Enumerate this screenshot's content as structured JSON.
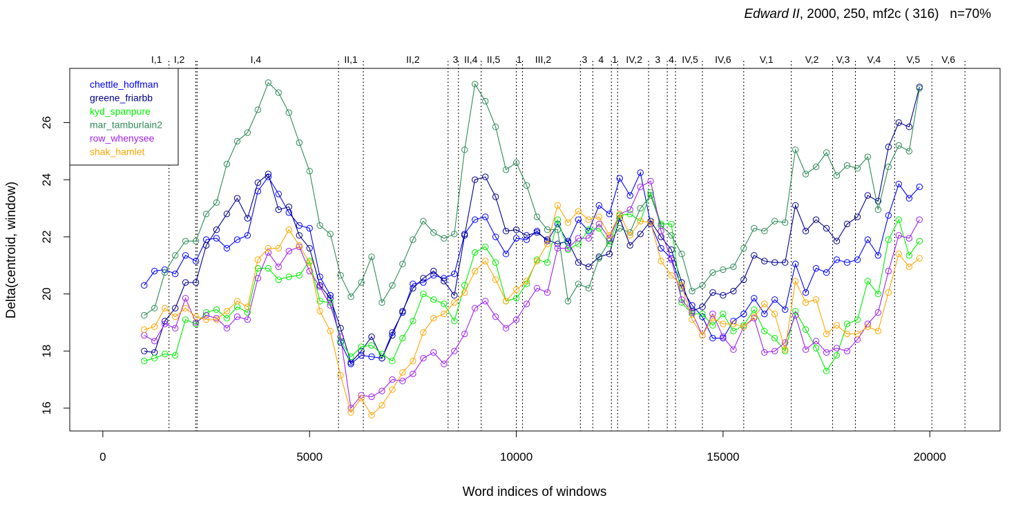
{
  "chart_data": {
    "type": "line",
    "title": {
      "italic": "Edward II",
      "rest": ", 2000, 250, mf2c ( 316)   n=70%"
    },
    "xlabel": "Word indices of windows",
    "ylabel": "Delta(centroid, window)",
    "xlim": [
      -800,
      21700
    ],
    "ylim": [
      15.2,
      27.9
    ],
    "x_ticks": [
      0,
      5000,
      10000,
      15000,
      20000
    ],
    "y_ticks": [
      16,
      18,
      20,
      22,
      24,
      26
    ],
    "legend_position": "top-left",
    "x": [
      1000,
      1250,
      1500,
      1750,
      2000,
      2250,
      2500,
      2750,
      3000,
      3250,
      3500,
      3750,
      4000,
      4250,
      4500,
      4750,
      5000,
      5250,
      5500,
      5750,
      6000,
      6250,
      6500,
      6750,
      7000,
      7250,
      7500,
      7750,
      8000,
      8250,
      8500,
      8750,
      9000,
      9250,
      9500,
      9750,
      10000,
      10250,
      10500,
      10750,
      11000,
      11250,
      11500,
      11750,
      12000,
      12250,
      12500,
      12750,
      13000,
      13250,
      13500,
      13750,
      14000,
      14250,
      14500,
      14750,
      15000,
      15250,
      15500,
      15750,
      16000,
      16250,
      16500,
      16750,
      17000,
      17250,
      17500,
      17750,
      18000,
      18250,
      18500,
      18750,
      19000,
      19250,
      19500,
      19750
    ],
    "series": [
      {
        "name": "chettle_hoffman",
        "color": "#0000ff",
        "values": [
          20.3,
          20.8,
          20.85,
          20.7,
          21.35,
          21.15,
          21.9,
          21.95,
          21.6,
          21.9,
          22.05,
          23.6,
          24.1,
          23.5,
          22.85,
          22.4,
          22.3,
          20.6,
          19.95,
          18.3,
          17.55,
          17.85,
          17.8,
          17.75,
          18.65,
          19.35,
          20.35,
          20.4,
          20.65,
          20.55,
          20.7,
          22.1,
          22.6,
          22.7,
          22.0,
          21.4,
          21.95,
          21.9,
          22.2,
          21.85,
          22.45,
          21.8,
          22.6,
          22.2,
          23.1,
          22.8,
          24.05,
          23.45,
          24.25,
          22.45,
          21.6,
          21.25,
          20.2,
          19.6,
          19.2,
          18.45,
          18.45,
          19.05,
          19.3,
          19.85,
          19.3,
          19.8,
          19.45,
          21.05,
          20.05,
          20.9,
          20.75,
          21.2,
          21.1,
          21.2,
          21.9,
          21.35,
          22.75,
          23.85,
          23.35,
          23.75
        ]
      },
      {
        "name": "greene_friarbb",
        "color": "#00008b",
        "values": [
          18.0,
          17.95,
          19.05,
          19.5,
          20.4,
          20.4,
          21.7,
          22.25,
          22.8,
          23.35,
          22.65,
          23.9,
          24.2,
          22.95,
          23.05,
          22.05,
          21.6,
          20.3,
          19.85,
          18.8,
          17.6,
          18.0,
          18.5,
          17.75,
          18.55,
          19.4,
          20.2,
          20.55,
          20.8,
          20.45,
          19.95,
          22.05,
          24.0,
          24.1,
          23.4,
          22.2,
          22.25,
          22.05,
          22.15,
          21.9,
          21.75,
          21.85,
          21.1,
          20.95,
          21.3,
          21.4,
          22.65,
          21.7,
          22.1,
          22.55,
          22.0,
          21.55,
          20.4,
          19.4,
          19.55,
          20.05,
          19.95,
          20.1,
          20.5,
          21.35,
          21.15,
          21.1,
          21.1,
          23.1,
          22.2,
          22.6,
          22.3,
          21.85,
          22.45,
          22.7,
          23.45,
          23.25,
          25.15,
          26.0,
          25.85,
          27.25
        ]
      },
      {
        "name": "kyd_spanpure",
        "color": "#00ee00",
        "values": [
          17.65,
          17.75,
          17.9,
          17.85,
          19.1,
          18.95,
          19.35,
          19.45,
          19.15,
          19.55,
          19.35,
          20.9,
          20.9,
          20.5,
          20.6,
          20.65,
          21.15,
          19.75,
          19.7,
          18.35,
          17.8,
          18.15,
          18.2,
          17.9,
          17.65,
          18.45,
          19.05,
          20.0,
          19.8,
          19.65,
          19.05,
          20.3,
          21.45,
          21.65,
          21.1,
          19.75,
          19.85,
          20.35,
          21.2,
          21.1,
          22.6,
          21.55,
          21.75,
          22.25,
          22.3,
          21.75,
          22.75,
          22.8,
          22.55,
          23.55,
          22.45,
          22.45,
          19.7,
          19.3,
          19.3,
          18.9,
          19.3,
          18.7,
          18.9,
          19.45,
          18.7,
          18.45,
          18.0,
          19.4,
          18.75,
          18.1,
          17.3,
          17.85,
          18.95,
          19.1,
          20.45,
          20.0,
          21.9,
          22.6,
          21.35,
          21.85
        ]
      },
      {
        "name": "mar_tamburlain2",
        "color": "#2e8b57",
        "values": [
          19.25,
          19.5,
          20.75,
          21.35,
          21.85,
          21.85,
          22.8,
          23.2,
          24.55,
          25.35,
          25.65,
          26.45,
          27.4,
          27.05,
          26.35,
          25.3,
          24.3,
          22.4,
          22.1,
          20.65,
          19.9,
          20.4,
          21.3,
          19.7,
          20.3,
          21.05,
          21.9,
          22.55,
          22.15,
          21.95,
          22.1,
          25.05,
          27.35,
          26.75,
          25.85,
          24.35,
          24.6,
          23.8,
          22.7,
          22.25,
          22.25,
          19.75,
          20.35,
          20.2,
          21.25,
          21.85,
          22.3,
          22.15,
          23.0,
          23.45,
          22.4,
          22.05,
          21.4,
          20.1,
          20.3,
          20.75,
          20.85,
          20.95,
          21.6,
          22.3,
          22.2,
          22.55,
          22.5,
          25.05,
          24.2,
          24.45,
          24.95,
          24.15,
          24.5,
          24.4,
          24.8,
          22.95,
          24.45,
          25.2,
          25.0,
          27.2
        ]
      },
      {
        "name": "row_whenysee",
        "color": "#a020f0",
        "values": [
          18.55,
          18.35,
          18.95,
          18.8,
          19.85,
          19.0,
          19.25,
          19.15,
          18.8,
          19.2,
          19.1,
          20.55,
          21.45,
          20.95,
          21.5,
          21.65,
          20.8,
          20.25,
          19.6,
          18.5,
          16.0,
          16.45,
          16.4,
          16.6,
          17.0,
          16.95,
          17.2,
          17.75,
          17.95,
          17.55,
          18.0,
          18.6,
          19.5,
          19.75,
          19.2,
          18.8,
          19.1,
          19.65,
          20.2,
          20.05,
          21.6,
          21.6,
          21.95,
          21.95,
          22.45,
          21.95,
          22.8,
          22.95,
          23.75,
          23.95,
          22.2,
          21.2,
          19.8,
          19.35,
          18.55,
          19.3,
          18.5,
          18.05,
          18.85,
          19.15,
          17.95,
          18.0,
          18.3,
          19.25,
          18.05,
          18.35,
          17.95,
          18.1,
          18.0,
          18.4,
          18.95,
          19.35,
          20.8,
          22.05,
          21.95,
          22.6
        ]
      },
      {
        "name": "shak_hamlet",
        "color": "#ffa500",
        "values": [
          18.75,
          18.85,
          19.5,
          19.2,
          19.5,
          19.2,
          19.1,
          19.1,
          19.4,
          19.75,
          19.55,
          21.2,
          21.6,
          21.6,
          22.25,
          21.7,
          21.1,
          19.4,
          18.7,
          17.15,
          15.85,
          16.35,
          15.75,
          16.1,
          16.65,
          17.25,
          17.65,
          18.65,
          19.15,
          19.3,
          19.7,
          20.05,
          20.8,
          21.15,
          20.5,
          19.75,
          20.15,
          20.45,
          21.15,
          21.75,
          23.1,
          22.5,
          22.9,
          22.6,
          22.7,
          22.05,
          22.8,
          22.05,
          22.55,
          22.5,
          21.15,
          20.65,
          20.3,
          19.1,
          18.55,
          19.15,
          18.95,
          18.95,
          18.85,
          19.2,
          19.65,
          19.3,
          18.05,
          20.45,
          19.7,
          19.8,
          18.6,
          18.9,
          18.6,
          18.6,
          18.85,
          18.7,
          20.05,
          21.4,
          20.95,
          21.25
        ]
      }
    ],
    "act_lines": [
      1600,
      2250,
      2280,
      5700,
      6300,
      8350,
      8600,
      9150,
      10000,
      10150,
      11550,
      11850,
      12300,
      12450,
      13200,
      13650,
      13850,
      14500,
      15500,
      16650,
      17650,
      18200,
      19150,
      20050,
      20850
    ],
    "act_labels": [
      {
        "text": "I,1",
        "x": 1300
      },
      {
        "text": "I,2",
        "x": 1850
      },
      {
        "text": "I,4",
        "x": 3700
      },
      {
        "text": "II,1",
        "x": 6000
      },
      {
        "text": "II,2",
        "x": 7500
      },
      {
        "text": "3",
        "x": 8530
      },
      {
        "text": "II,4",
        "x": 8900
      },
      {
        "text": "II,5",
        "x": 9450
      },
      {
        "text": "1",
        "x": 10070
      },
      {
        "text": "III,2",
        "x": 10650
      },
      {
        "text": "3",
        "x": 11650
      },
      {
        "text": "4",
        "x": 12050
      },
      {
        "text": "1",
        "x": 12380
      },
      {
        "text": "IV,2",
        "x": 12850
      },
      {
        "text": "3",
        "x": 13420
      },
      {
        "text": "4",
        "x": 13750
      },
      {
        "text": "IV,5",
        "x": 14200
      },
      {
        "text": "IV,6",
        "x": 15000
      },
      {
        "text": "V,1",
        "x": 16050
      },
      {
        "text": "V,2",
        "x": 17150
      },
      {
        "text": "V,3",
        "x": 17900
      },
      {
        "text": "V,4",
        "x": 18650
      },
      {
        "text": "V,5",
        "x": 19600
      },
      {
        "text": "V,6",
        "x": 20450
      }
    ]
  }
}
